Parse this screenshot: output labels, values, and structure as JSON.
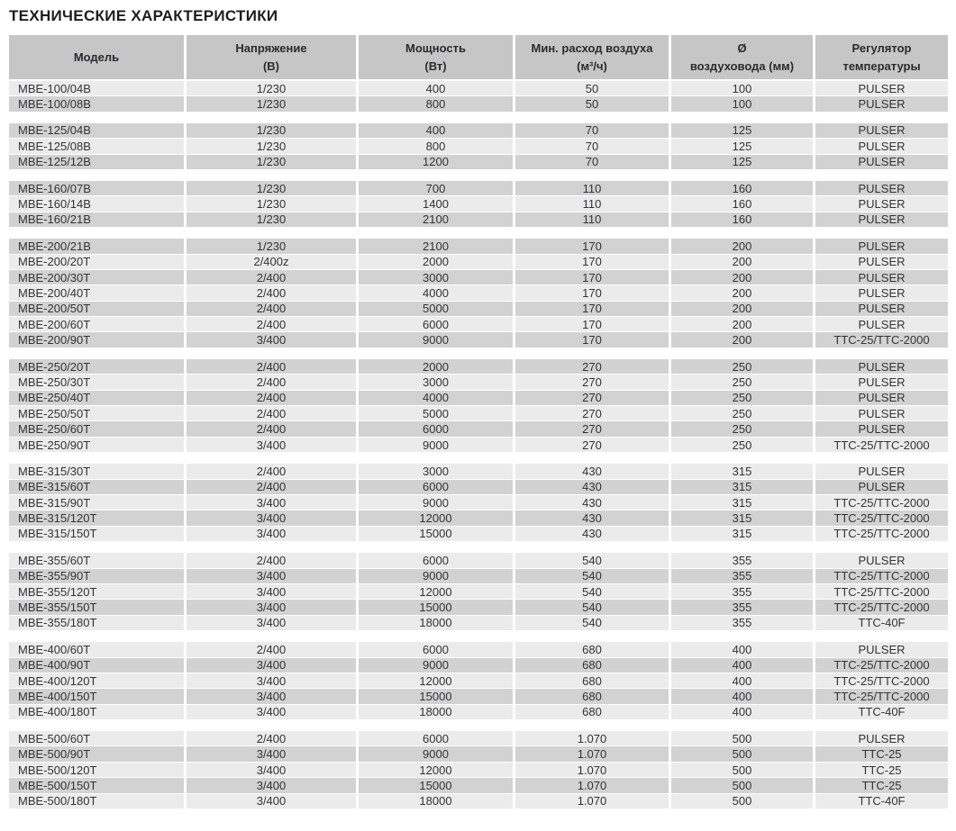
{
  "title": "ТЕХНИЧЕСКИЕ ХАРАКТЕРИСТИКИ",
  "colors": {
    "header_bg": "#c6c6c6",
    "row_light": "#ebebeb",
    "row_dark": "#d2d2d2",
    "text": "#333338",
    "title_text": "#1d1d1b"
  },
  "table": {
    "column_keys": [
      "model",
      "voltage",
      "power",
      "airflow",
      "diameter",
      "regulator"
    ],
    "columns": [
      {
        "line1": "Модель",
        "line2": ""
      },
      {
        "line1": "Напряжение",
        "line2": "(В)"
      },
      {
        "line1": "Мощность",
        "line2": "(Вт)"
      },
      {
        "line1": "Мин. расход воздуха",
        "line2": "(м³/ч)"
      },
      {
        "line1": "Ø",
        "line2": "воздуховода (мм)"
      },
      {
        "line1": "Регулятор",
        "line2": "температуры"
      }
    ],
    "groups": [
      {
        "rows": [
          [
            "MBE-100/04B",
            "1/230",
            "400",
            "50",
            "100",
            "PULSER"
          ],
          [
            "MBE-100/08B",
            "1/230",
            "800",
            "50",
            "100",
            "PULSER"
          ]
        ]
      },
      {
        "rows": [
          [
            "MBE-125/04B",
            "1/230",
            "400",
            "70",
            "125",
            "PULSER"
          ],
          [
            "MBE-125/08B",
            "1/230",
            "800",
            "70",
            "125",
            "PULSER"
          ],
          [
            "MBE-125/12B",
            "1/230",
            "1200",
            "70",
            "125",
            "PULSER"
          ]
        ]
      },
      {
        "rows": [
          [
            "MBE-160/07B",
            "1/230",
            "700",
            "110",
            "160",
            "PULSER"
          ],
          [
            "MBE-160/14B",
            "1/230",
            "1400",
            "110",
            "160",
            "PULSER"
          ],
          [
            "MBE-160/21B",
            "1/230",
            "2100",
            "110",
            "160",
            "PULSER"
          ]
        ]
      },
      {
        "rows": [
          [
            "MBE-200/21B",
            "1/230",
            "2100",
            "170",
            "200",
            "PULSER"
          ],
          [
            "MBE-200/20T",
            "2/400z",
            "2000",
            "170",
            "200",
            "PULSER"
          ],
          [
            "MBE-200/30T",
            "2/400",
            "3000",
            "170",
            "200",
            "PULSER"
          ],
          [
            "MBE-200/40T",
            "2/400",
            "4000",
            "170",
            "200",
            "PULSER"
          ],
          [
            "MBE-200/50T",
            "2/400",
            "5000",
            "170",
            "200",
            "PULSER"
          ],
          [
            "MBE-200/60T",
            "2/400",
            "6000",
            "170",
            "200",
            "PULSER"
          ],
          [
            "MBE-200/90T",
            "3/400",
            "9000",
            "170",
            "200",
            "TTC-25/TTC-2000"
          ]
        ]
      },
      {
        "rows": [
          [
            "MBE-250/20T",
            "2/400",
            "2000",
            "270",
            "250",
            "PULSER"
          ],
          [
            "MBE-250/30T",
            "2/400",
            "3000",
            "270",
            "250",
            "PULSER"
          ],
          [
            "MBE-250/40T",
            "2/400",
            "4000",
            "270",
            "250",
            "PULSER"
          ],
          [
            "MBE-250/50T",
            "2/400",
            "5000",
            "270",
            "250",
            "PULSER"
          ],
          [
            "MBE-250/60T",
            "2/400",
            "6000",
            "270",
            "250",
            "PULSER"
          ],
          [
            "MBE-250/90T",
            "3/400",
            "9000",
            "270",
            "250",
            "TTC-25/TTC-2000"
          ]
        ]
      },
      {
        "rows": [
          [
            "MBE-315/30T",
            "2/400",
            "3000",
            "430",
            "315",
            "PULSER"
          ],
          [
            "MBE-315/60T",
            "2/400",
            "6000",
            "430",
            "315",
            "PULSER"
          ],
          [
            "MBE-315/90T",
            "3/400",
            "9000",
            "430",
            "315",
            "TTC-25/TTC-2000"
          ],
          [
            "MBE-315/120T",
            "3/400",
            "12000",
            "430",
            "315",
            "TTC-25/TTC-2000"
          ],
          [
            "MBE-315/150T",
            "3/400",
            "15000",
            "430",
            "315",
            "TTC-25/TTC-2000"
          ]
        ]
      },
      {
        "rows": [
          [
            "MBE-355/60T",
            "2/400",
            "6000",
            "540",
            "355",
            "PULSER"
          ],
          [
            "MBE-355/90T",
            "3/400",
            "9000",
            "540",
            "355",
            "TTC-25/TTC-2000"
          ],
          [
            "MBE-355/120T",
            "3/400",
            "12000",
            "540",
            "355",
            "TTC-25/TTC-2000"
          ],
          [
            "MBE-355/150T",
            "3/400",
            "15000",
            "540",
            "355",
            "TTC-25/TTC-2000"
          ],
          [
            "MBE-355/180T",
            "3/400",
            "18000",
            "540",
            "355",
            "TTC-40F"
          ]
        ]
      },
      {
        "rows": [
          [
            "MBE-400/60T",
            "2/400",
            "6000",
            "680",
            "400",
            "PULSER"
          ],
          [
            "MBE-400/90T",
            "3/400",
            "9000",
            "680",
            "400",
            "TTC-25/TTC-2000"
          ],
          [
            "MBE-400/120T",
            "3/400",
            "12000",
            "680",
            "400",
            "TTC-25/TTC-2000"
          ],
          [
            "MBE-400/150T",
            "3/400",
            "15000",
            "680",
            "400",
            "TTC-25/TTC-2000"
          ],
          [
            "MBE-400/180T",
            "3/400",
            "18000",
            "680",
            "400",
            "TTC-40F"
          ]
        ]
      },
      {
        "rows": [
          [
            "MBE-500/60T",
            "2/400",
            "6000",
            "1.070",
            "500",
            "PULSER"
          ],
          [
            "MBE-500/90T",
            "3/400",
            "9000",
            "1.070",
            "500",
            "TTC-25"
          ],
          [
            "MBE-500/120T",
            "3/400",
            "12000",
            "1.070",
            "500",
            "TTC-25"
          ],
          [
            "MBE-500/150T",
            "3/400",
            "15000",
            "1.070",
            "500",
            "TTC-25"
          ],
          [
            "MBE-500/180T",
            "3/400",
            "18000",
            "1.070",
            "500",
            "TTC-40F"
          ]
        ]
      }
    ]
  }
}
